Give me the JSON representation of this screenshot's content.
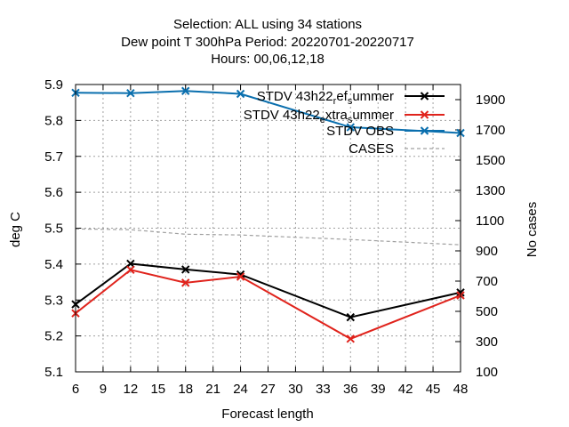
{
  "chart_data": {
    "type": "line",
    "title_lines": [
      "Selection: ALL using    34 stations",
      "Dew point T 300hPa   Period: 20220701-20220717",
      "Hours:  00,06,12,18"
    ],
    "xlabel": "Forecast length",
    "ylabel": "deg C",
    "y2label": "No cases",
    "xlim": [
      6,
      48
    ],
    "ylim": [
      5.1,
      5.9
    ],
    "y2lim": [
      100,
      2000
    ],
    "xticks": [
      6,
      9,
      12,
      15,
      18,
      21,
      24,
      27,
      30,
      33,
      36,
      39,
      42,
      45,
      48
    ],
    "yticks": [
      "5.1",
      "5.2",
      "5.3",
      "5.4",
      "5.5",
      "5.6",
      "5.7",
      "5.8",
      "5.9"
    ],
    "y2ticks": [
      "100",
      "300",
      "500",
      "700",
      "900",
      "1100",
      "1300",
      "1500",
      "1700",
      "1900"
    ],
    "x": [
      6,
      12,
      18,
      24,
      36,
      48
    ],
    "grid": true,
    "legend_position": "top-right",
    "series": [
      {
        "name": "STDV 43h22_ref_summer",
        "legend_main": "STDV 43h22",
        "legend_sub1": "r",
        "legend_mid": "ef",
        "legend_sub2": "s",
        "legend_end": "ummer",
        "axis": "y",
        "color": "#000000",
        "marker": "x",
        "values": [
          5.288,
          5.401,
          5.385,
          5.371,
          5.252,
          5.321
        ]
      },
      {
        "name": "STDV 43h22_extra_summer",
        "legend_main": "STDV 43h22",
        "legend_sub1": "e",
        "legend_mid": "xtra",
        "legend_sub2": "s",
        "legend_end": "ummer",
        "axis": "y",
        "color": "#e0231c",
        "marker": "x",
        "values": [
          5.263,
          5.384,
          5.348,
          5.365,
          5.192,
          5.313
        ]
      },
      {
        "name": "STDV OBS",
        "axis": "y",
        "color": "#0a6fae",
        "marker": "x",
        "values": [
          5.877,
          5.876,
          5.882,
          5.874,
          5.781,
          5.765
        ]
      },
      {
        "name": "CASES",
        "axis": "y2",
        "color": "#a0a0a0",
        "dashed": true,
        "values": [
          1045,
          1040,
          1010,
          1005,
          975,
          940
        ]
      }
    ]
  }
}
